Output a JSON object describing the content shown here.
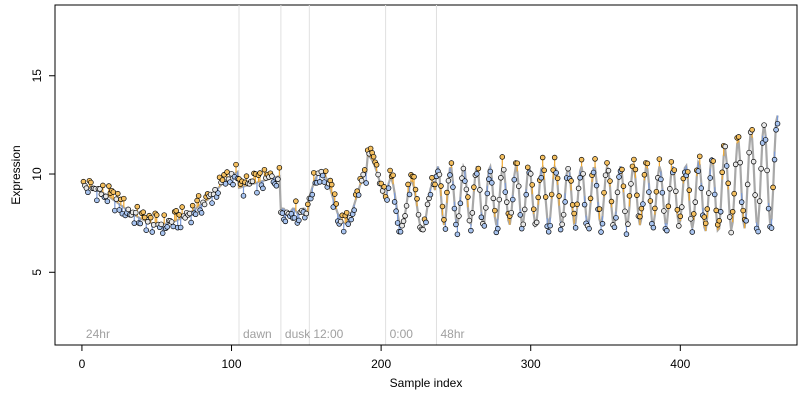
{
  "chart_data": {
    "type": "line",
    "title": "",
    "xlabel": "Sample index",
    "ylabel": "Expression",
    "xlim": [
      -18,
      478
    ],
    "ylim": [
      1.3,
      18.6
    ],
    "x_ticks": [
      0,
      100,
      200,
      300,
      400
    ],
    "y_ticks": [
      5,
      10,
      15
    ],
    "grid": false,
    "legend": "none",
    "colors": {
      "fitted_line": "#a8a8a8",
      "residual_positive": "#f0a830",
      "residual_negative": "#7a9ad8",
      "point_fill_positive": "#f5c060",
      "point_fill_negative": "#a8c4f0",
      "point_fill_neutral": "#e8e8e8",
      "point_edge": "#000000",
      "divider": "#e0e0e0",
      "region_label": "#a0a0a0"
    },
    "regions": [
      {
        "label": "24hr",
        "start": 0
      },
      {
        "label": "dawn",
        "start": 105
      },
      {
        "label": "dusk",
        "start": 133
      },
      {
        "label": "12:00",
        "start": 152
      },
      {
        "label": "0:00",
        "start": 203
      },
      {
        "label": "48hr",
        "start": 237
      }
    ],
    "series": [
      {
        "role": "observed",
        "x": [],
        "values": []
      },
      {
        "role": "fitted",
        "x": [],
        "values": []
      }
    ]
  }
}
